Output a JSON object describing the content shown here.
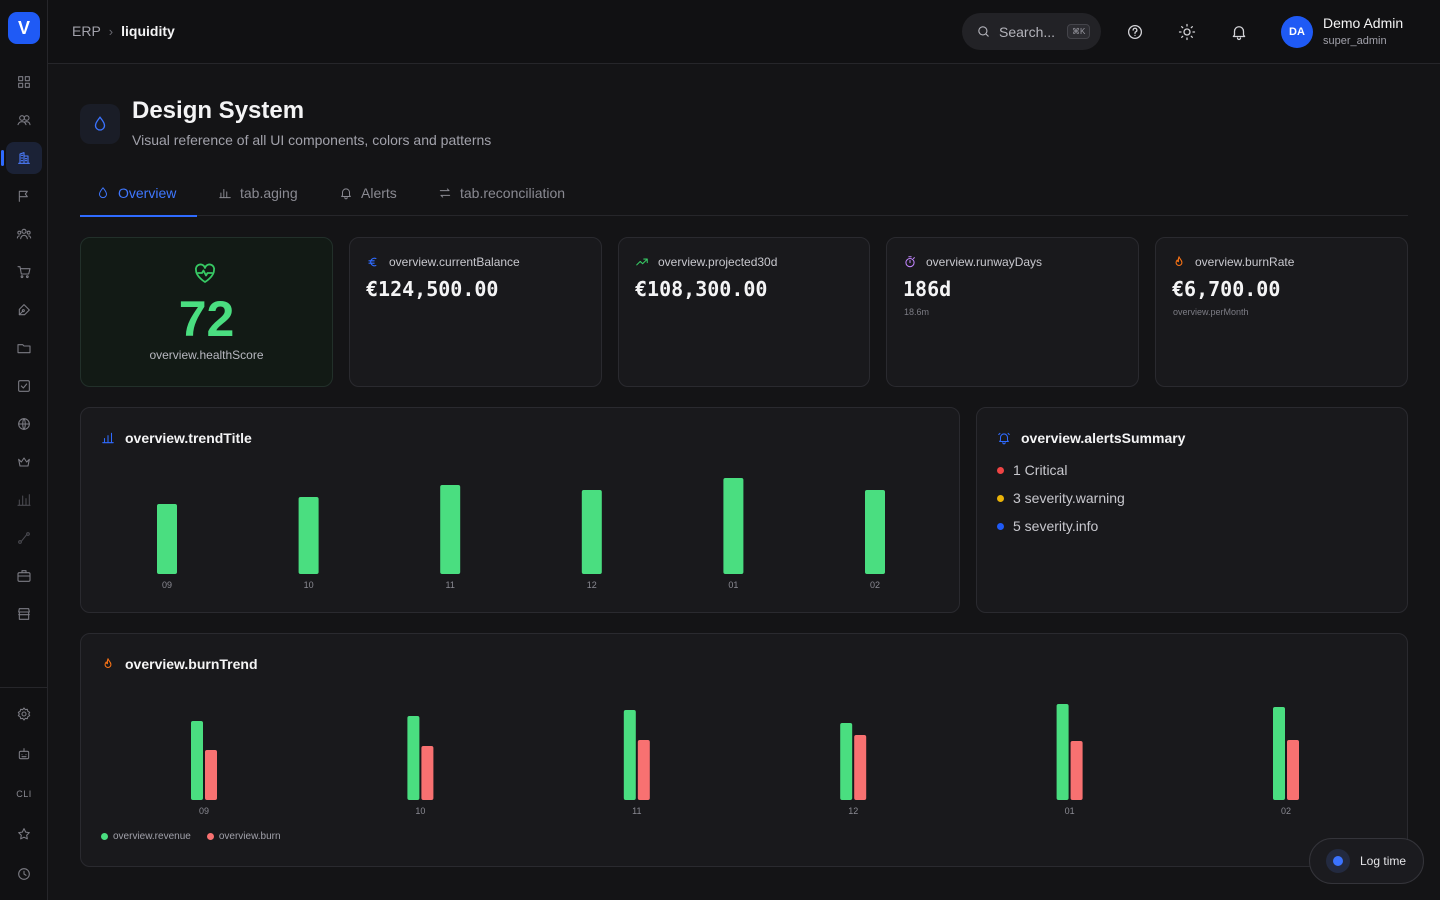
{
  "app": {
    "logo_letter": "V"
  },
  "sidebar": {
    "items": [
      {
        "name": "grid-icon"
      },
      {
        "name": "users-icon"
      },
      {
        "name": "building-icon",
        "active": true
      },
      {
        "name": "flag-icon"
      },
      {
        "name": "team-icon"
      },
      {
        "name": "cart-icon"
      },
      {
        "name": "pen-icon"
      },
      {
        "name": "folder-icon"
      },
      {
        "name": "checkbox-icon"
      },
      {
        "name": "globe-icon"
      },
      {
        "name": "crown-icon"
      },
      {
        "name": "bar-chart-icon"
      },
      {
        "name": "route-icon"
      },
      {
        "name": "briefcase-icon"
      },
      {
        "name": "store-icon"
      }
    ],
    "bottom": {
      "cli_label": "CLI"
    }
  },
  "header": {
    "breadcrumb_root": "ERP",
    "breadcrumb_current": "liquidity",
    "search_placeholder": "Search...",
    "search_shortcut": "⌘K",
    "user_initials": "DA",
    "user_name": "Demo Admin",
    "user_role": "super_admin"
  },
  "page": {
    "title": "Design System",
    "subtitle": "Visual reference of all UI components, colors and patterns"
  },
  "tabs": [
    {
      "label": "Overview",
      "icon": "droplet-icon",
      "active": true
    },
    {
      "label": "tab.aging",
      "icon": "bar-chart-icon"
    },
    {
      "label": "Alerts",
      "icon": "bell-icon"
    },
    {
      "label": "tab.reconciliation",
      "icon": "swap-icon"
    }
  ],
  "kpis": {
    "health": {
      "score": "72",
      "label": "overview.healthScore"
    },
    "current_balance": {
      "label": "overview.currentBalance",
      "value": "€124,500.00"
    },
    "projected": {
      "label": "overview.projected30d",
      "value": "€108,300.00"
    },
    "runway": {
      "label": "overview.runwayDays",
      "value": "186d",
      "sub": "18.6m"
    },
    "burn_rate": {
      "label": "overview.burnRate",
      "value": "€6,700.00",
      "sub": "overview.perMonth"
    }
  },
  "trend": {
    "title": "overview.trendTitle"
  },
  "alerts_summary": {
    "title": "overview.alertsSummary",
    "items": [
      {
        "text": "1 Critical",
        "color": "#ef4444"
      },
      {
        "text": "3 severity.warning",
        "color": "#eab308"
      },
      {
        "text": "5 severity.info",
        "color": "#1f5af5"
      }
    ]
  },
  "burn_trend": {
    "title": "overview.burnTrend",
    "legend_revenue": "overview.revenue",
    "legend_burn": "overview.burn"
  },
  "fab": {
    "label": "Log time"
  },
  "colors": {
    "accent": "#2f6bff",
    "green": "#4ade80",
    "red": "#f87171"
  },
  "chart_data": [
    {
      "type": "bar",
      "categories": [
        "09",
        "10",
        "11",
        "12",
        "01",
        "02"
      ],
      "values": [
        70,
        77,
        89,
        84,
        96,
        84
      ],
      "title": "overview.trendTitle",
      "ylim": [
        0,
        100
      ]
    },
    {
      "type": "bar",
      "categories": [
        "09",
        "10",
        "11",
        "12",
        "01",
        "02"
      ],
      "series": [
        {
          "name": "overview.revenue",
          "values": [
            79,
            84,
            90,
            77,
            96,
            93
          ]
        },
        {
          "name": "overview.burn",
          "values": [
            50,
            54,
            60,
            65,
            59,
            60
          ]
        }
      ],
      "title": "overview.burnTrend",
      "ylim": [
        0,
        100
      ]
    }
  ]
}
